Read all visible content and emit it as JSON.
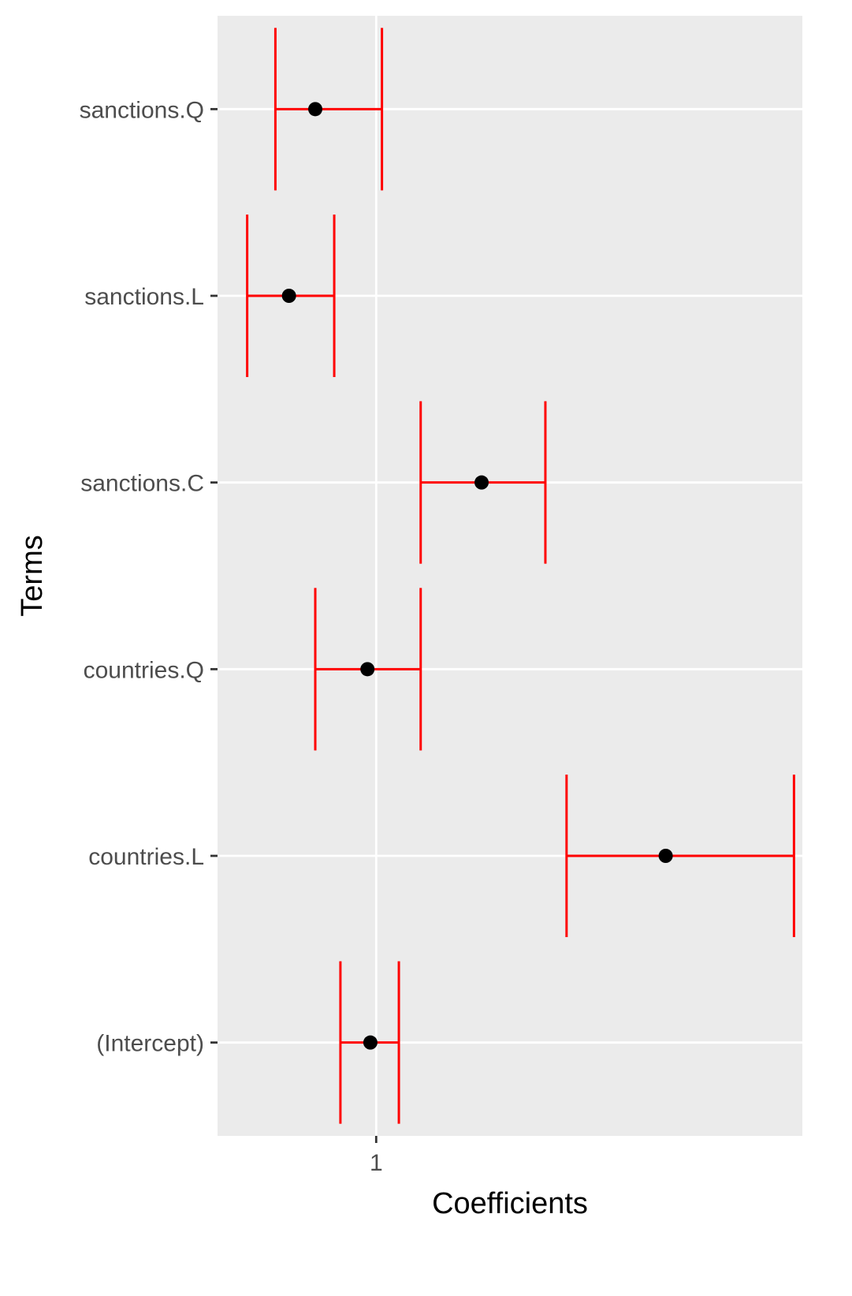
{
  "chart_data": {
    "type": "errorbar",
    "xlabel": "Coefficients",
    "ylabel": "Terms",
    "x_scale": "log",
    "xlim": [
      0.76,
      2.09
    ],
    "x_ticks": [
      1
    ],
    "x_tick_labels": [
      "1"
    ],
    "grid": true,
    "terms": [
      "(Intercept)",
      "countries.L",
      "countries.Q",
      "sanctions.C",
      "sanctions.L",
      "sanctions.Q"
    ],
    "estimates": [
      0.99,
      1.65,
      0.985,
      1.2,
      0.86,
      0.9
    ],
    "lower": [
      0.94,
      1.39,
      0.9,
      1.08,
      0.8,
      0.84
    ],
    "upper": [
      1.04,
      2.06,
      1.08,
      1.34,
      0.93,
      1.01
    ],
    "colors": {
      "panel": "#ebebeb",
      "grid": "#ffffff",
      "errorbar": "#ff0000",
      "point": "#000000",
      "tick": "#333333"
    }
  }
}
